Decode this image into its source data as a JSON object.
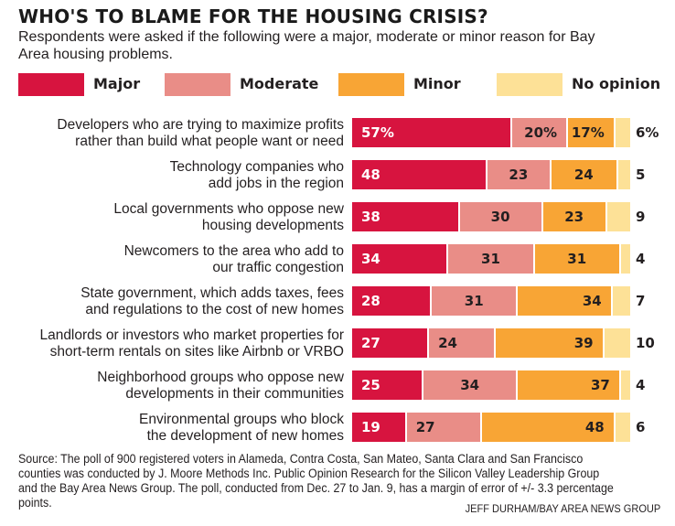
{
  "chart_data": {
    "type": "bar",
    "orientation": "horizontal",
    "stacked": true,
    "title": "WHO'S TO BLAME FOR THE HOUSING CRISIS?",
    "subtitle": "Respondents were asked if the following were a major, moderate or minor reason for Bay Area housing problems.",
    "xlabel": "",
    "ylabel": "",
    "xlim": [
      0,
      100
    ],
    "grid": false,
    "legend_position": "top",
    "unit": "%",
    "categories": [
      [
        "Developers who are trying to maximize profits",
        "rather than build what people want or need"
      ],
      [
        "Technology companies who",
        "add jobs in the region"
      ],
      [
        "Local governments who oppose new",
        "housing developments"
      ],
      [
        "Newcomers to the area who add to",
        "our traffic congestion"
      ],
      [
        "State government, which adds taxes, fees",
        "and regulations to the cost of new homes"
      ],
      [
        "Landlords or investors who market properties for",
        "short-term rentals on sites like Airbnb or VRBO"
      ],
      [
        "Neighborhood groups who oppose new",
        "developments in their communities"
      ],
      [
        "Environmental groups who block",
        "the development of new homes"
      ]
    ],
    "series": [
      {
        "name": "Major",
        "color": "#d7143f",
        "text_color": "#ffffff",
        "values": [
          57,
          48,
          38,
          34,
          28,
          27,
          25,
          19
        ]
      },
      {
        "name": "Moderate",
        "color": "#e98d87",
        "text_color": "#231f20",
        "values": [
          20,
          23,
          30,
          31,
          31,
          24,
          34,
          27
        ]
      },
      {
        "name": "Minor",
        "color": "#f8a535",
        "text_color": "#231f20",
        "values": [
          17,
          24,
          23,
          31,
          34,
          39,
          37,
          48
        ]
      },
      {
        "name": "No opinion",
        "color": "#fde197",
        "text_color": "#231f20",
        "values": [
          6,
          5,
          9,
          4,
          7,
          10,
          4,
          6
        ]
      }
    ],
    "first_row_shows_percent": true,
    "data_label_alignment": {
      "Major": "left",
      "Moderate": [
        "right",
        "center",
        "center",
        "center",
        "center",
        "left",
        "center",
        "left"
      ],
      "Minor": [
        "right",
        "center",
        "center",
        "center",
        "right",
        "right",
        "right",
        "right"
      ],
      "No opinion": "outside"
    }
  },
  "source": "Source: The poll of 900 registered voters in Alameda, Contra Costa, San Mateo, Santa Clara and San Francisco counties was conducted by J. Moore Methods Inc. Public Opinion Research for the Silicon Valley Leadership Group and the Bay Area News Group. The poll, conducted from Dec. 27 to Jan. 9, has a margin of error of +/- 3.3 percentage points.",
  "credit": "JEFF DURHAM/BAY AREA NEWS GROUP"
}
